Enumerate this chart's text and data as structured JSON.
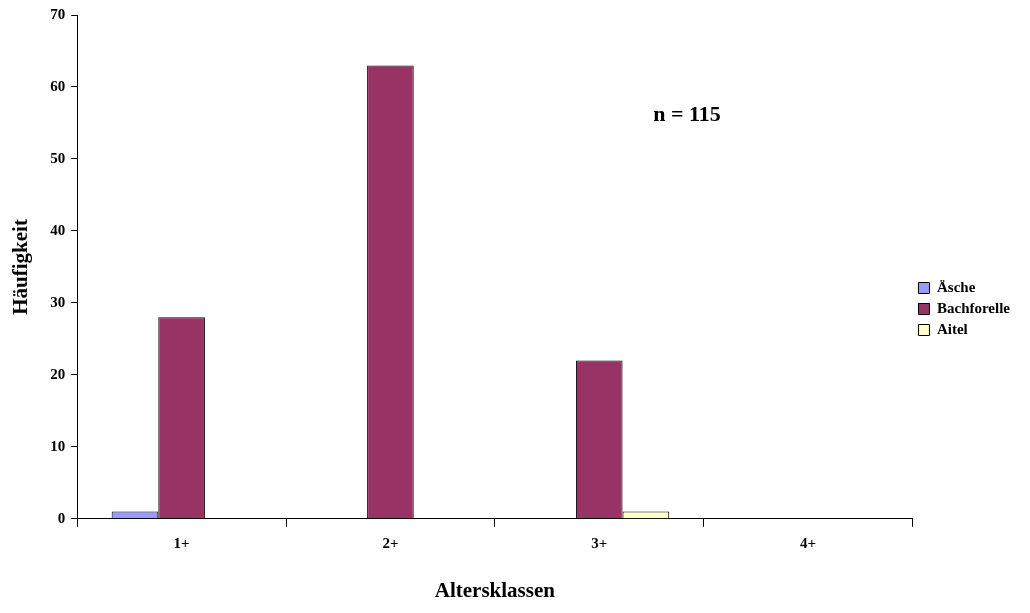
{
  "chart_data": {
    "type": "bar",
    "xlabel": "Altersklassen",
    "ylabel": "Häufigkeit",
    "categories": [
      "1+",
      "2+",
      "3+",
      "4+"
    ],
    "series": [
      {
        "name": "Äsche",
        "color": "#9999ff",
        "values": [
          1,
          0,
          0,
          0
        ]
      },
      {
        "name": "Bachforelle",
        "color": "#993366",
        "values": [
          28,
          63,
          22,
          0
        ]
      },
      {
        "name": "Aitel",
        "color": "#ffffcc",
        "values": [
          0,
          0,
          1,
          0
        ]
      }
    ],
    "ylim": [
      0,
      70
    ],
    "yticks": [
      0,
      10,
      20,
      30,
      40,
      50,
      60,
      70
    ],
    "grid": false,
    "legend": "right",
    "annotations": [
      "n = 115"
    ]
  }
}
